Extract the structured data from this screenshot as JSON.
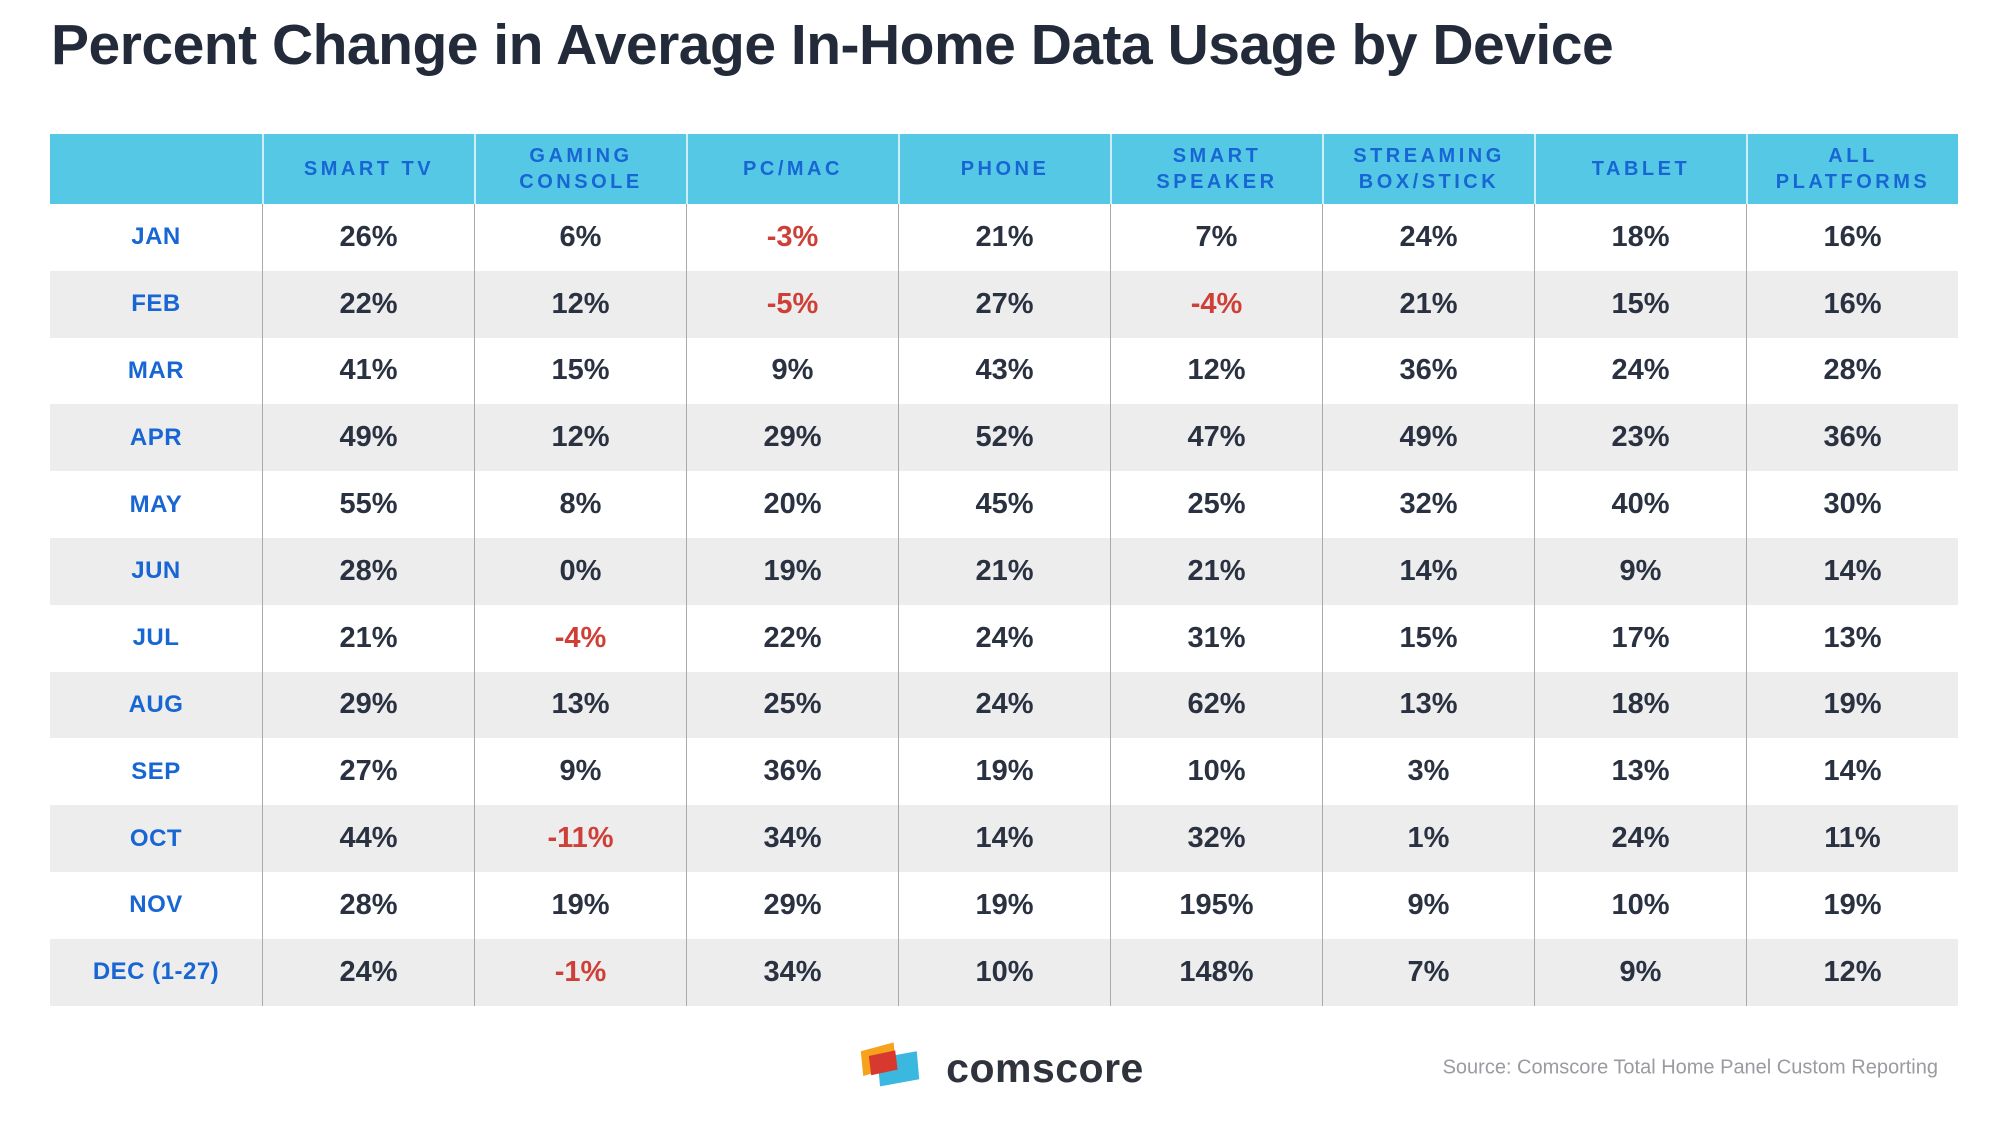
{
  "title": "Percent Change in Average In-Home Data Usage by Device",
  "table": {
    "corner_label": "",
    "columns": [
      "SMART TV",
      "GAMING CONSOLE",
      "PC/MAC",
      "PHONE",
      "SMART SPEAKER",
      "STREAMING BOX/STICK",
      "TABLET",
      "ALL PLATFORMS"
    ],
    "rows": [
      {
        "month": "JAN",
        "values": [
          "26%",
          "6%",
          "-3%",
          "21%",
          "7%",
          "24%",
          "18%",
          "16%"
        ]
      },
      {
        "month": "FEB",
        "values": [
          "22%",
          "12%",
          "-5%",
          "27%",
          "-4%",
          "21%",
          "15%",
          "16%"
        ]
      },
      {
        "month": "MAR",
        "values": [
          "41%",
          "15%",
          "9%",
          "43%",
          "12%",
          "36%",
          "24%",
          "28%"
        ]
      },
      {
        "month": "APR",
        "values": [
          "49%",
          "12%",
          "29%",
          "52%",
          "47%",
          "49%",
          "23%",
          "36%"
        ]
      },
      {
        "month": "MAY",
        "values": [
          "55%",
          "8%",
          "20%",
          "45%",
          "25%",
          "32%",
          "40%",
          "30%"
        ]
      },
      {
        "month": "JUN",
        "values": [
          "28%",
          "0%",
          "19%",
          "21%",
          "21%",
          "14%",
          "9%",
          "14%"
        ]
      },
      {
        "month": "JUL",
        "values": [
          "21%",
          "-4%",
          "22%",
          "24%",
          "31%",
          "15%",
          "17%",
          "13%"
        ]
      },
      {
        "month": "AUG",
        "values": [
          "29%",
          "13%",
          "25%",
          "24%",
          "62%",
          "13%",
          "18%",
          "19%"
        ]
      },
      {
        "month": "SEP",
        "values": [
          "27%",
          "9%",
          "36%",
          "19%",
          "10%",
          "3%",
          "13%",
          "14%"
        ]
      },
      {
        "month": "OCT",
        "values": [
          "44%",
          "-11%",
          "34%",
          "14%",
          "32%",
          "1%",
          "24%",
          "11%"
        ]
      },
      {
        "month": "NOV",
        "values": [
          "28%",
          "19%",
          "29%",
          "19%",
          "195%",
          "9%",
          "10%",
          "19%"
        ]
      },
      {
        "month": "DEC (1-27)",
        "values": [
          "24%",
          "-1%",
          "34%",
          "10%",
          "148%",
          "7%",
          "9%",
          "12%"
        ]
      }
    ]
  },
  "chart_data": {
    "type": "table",
    "title": "Percent Change in Average In-Home Data Usage by Device",
    "categories": [
      "JAN",
      "FEB",
      "MAR",
      "APR",
      "MAY",
      "JUN",
      "JUL",
      "AUG",
      "SEP",
      "OCT",
      "NOV",
      "DEC (1-27)"
    ],
    "unit": "percent",
    "series": [
      {
        "name": "SMART TV",
        "values": [
          26,
          22,
          41,
          49,
          55,
          28,
          21,
          29,
          27,
          44,
          28,
          24
        ]
      },
      {
        "name": "GAMING CONSOLE",
        "values": [
          6,
          12,
          15,
          12,
          8,
          0,
          -4,
          13,
          9,
          -11,
          19,
          -1
        ]
      },
      {
        "name": "PC/MAC",
        "values": [
          -3,
          -5,
          9,
          29,
          20,
          19,
          22,
          25,
          36,
          34,
          29,
          34
        ]
      },
      {
        "name": "PHONE",
        "values": [
          21,
          27,
          43,
          52,
          45,
          21,
          24,
          24,
          19,
          14,
          19,
          10
        ]
      },
      {
        "name": "SMART SPEAKER",
        "values": [
          7,
          -4,
          12,
          47,
          25,
          21,
          31,
          62,
          10,
          32,
          195,
          148
        ]
      },
      {
        "name": "STREAMING BOX/STICK",
        "values": [
          24,
          21,
          36,
          49,
          32,
          14,
          15,
          13,
          3,
          1,
          9,
          7
        ]
      },
      {
        "name": "TABLET",
        "values": [
          18,
          15,
          24,
          23,
          40,
          9,
          17,
          18,
          13,
          24,
          10,
          9
        ]
      },
      {
        "name": "ALL PLATFORMS",
        "values": [
          16,
          16,
          28,
          36,
          30,
          14,
          13,
          19,
          14,
          11,
          19,
          12
        ]
      }
    ],
    "layout_hints": {
      "negative_value_color": "#ce4037",
      "header_background": "#55c8e6",
      "header_text_color": "#1766d4",
      "row_stripe_color": "#ededee",
      "value_text_color": "#2a3241"
    }
  },
  "footer": {
    "logo_text": "comscore",
    "source": "Source: Comscore Total Home Panel Custom Reporting"
  },
  "colors": {
    "accent_blue": "#1766d4",
    "header_cyan": "#55c8e6",
    "negative_red": "#ce4037",
    "dark_navy": "#2a3241",
    "stripe_gray": "#ededee",
    "logo_orange": "#f6a21d",
    "logo_red": "#d8392f",
    "logo_cyan": "#3bb8e0"
  }
}
